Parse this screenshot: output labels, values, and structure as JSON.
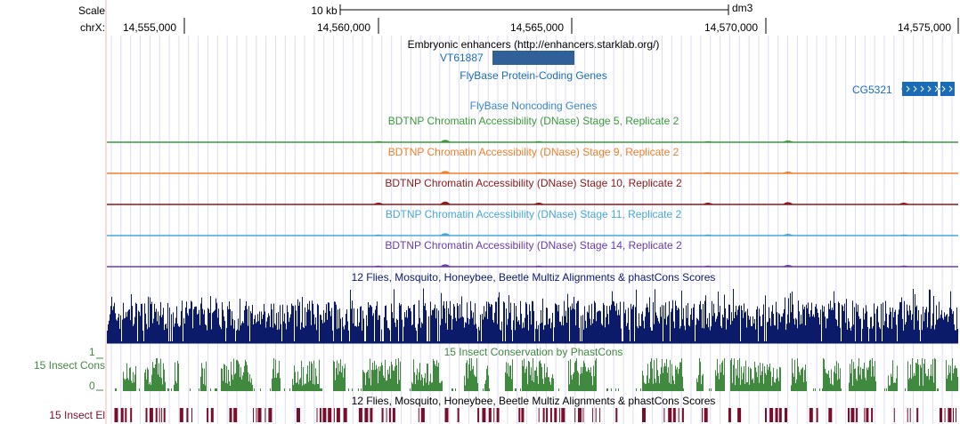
{
  "ruler": {
    "scale_label": "Scale",
    "chrom_label": "chrX:",
    "scale_bar_text": "10 kb",
    "assembly": "dm3",
    "ticks": [
      "14,555,000",
      "14,560,000",
      "14,565,000",
      "14,570,000",
      "14,575,000"
    ]
  },
  "tracks": {
    "enhancers": {
      "title": "Embryonic enhancers (http://enhancers.starklab.org/)",
      "item_label": "VT61887",
      "color": "#2f6198"
    },
    "protein_genes": {
      "title": "FlyBase Protein-Coding Genes",
      "gene_label": "CG5321",
      "color": "#1a6cb8"
    },
    "noncoding": {
      "title": "FlyBase Noncoding Genes",
      "color": "#3a86c8"
    },
    "dnase": [
      {
        "title": "BDTNP Chromatin Accessibility (DNase) Stage 5, Replicate 2",
        "color": "#3c9a3c"
      },
      {
        "title": "BDTNP Chromatin Accessibility (DNase) Stage 9, Replicate 2",
        "color": "#f07f2a"
      },
      {
        "title": "BDTNP Chromatin Accessibility (DNase) Stage 10, Replicate 2",
        "color": "#8b1a1a"
      },
      {
        "title": "BDTNP Chromatin Accessibility (DNase) Stage 11, Replicate 2",
        "color": "#48a8d8"
      },
      {
        "title": "BDTNP Chromatin Accessibility (DNase) Stage 14, Replicate 2",
        "color": "#6a3ea8"
      }
    ],
    "multiz": {
      "title": "12 Flies, Mosquito, Honeybee, Beetle Multiz Alignments & phastCons Scores",
      "color": "#0c1a6a"
    },
    "cons": {
      "title": "15 Insect Conservation by PhastCons",
      "side_label": "15 Insect Cons",
      "y_max": "1",
      "y_min": "0",
      "color": "#3f8a3f"
    },
    "elements": {
      "title": "12 Flies, Mosquito, Honeybee, Beetle Multiz Alignments & phastCons Scores",
      "side_label": "15 Insect El",
      "color": "#7a0d2a"
    }
  }
}
